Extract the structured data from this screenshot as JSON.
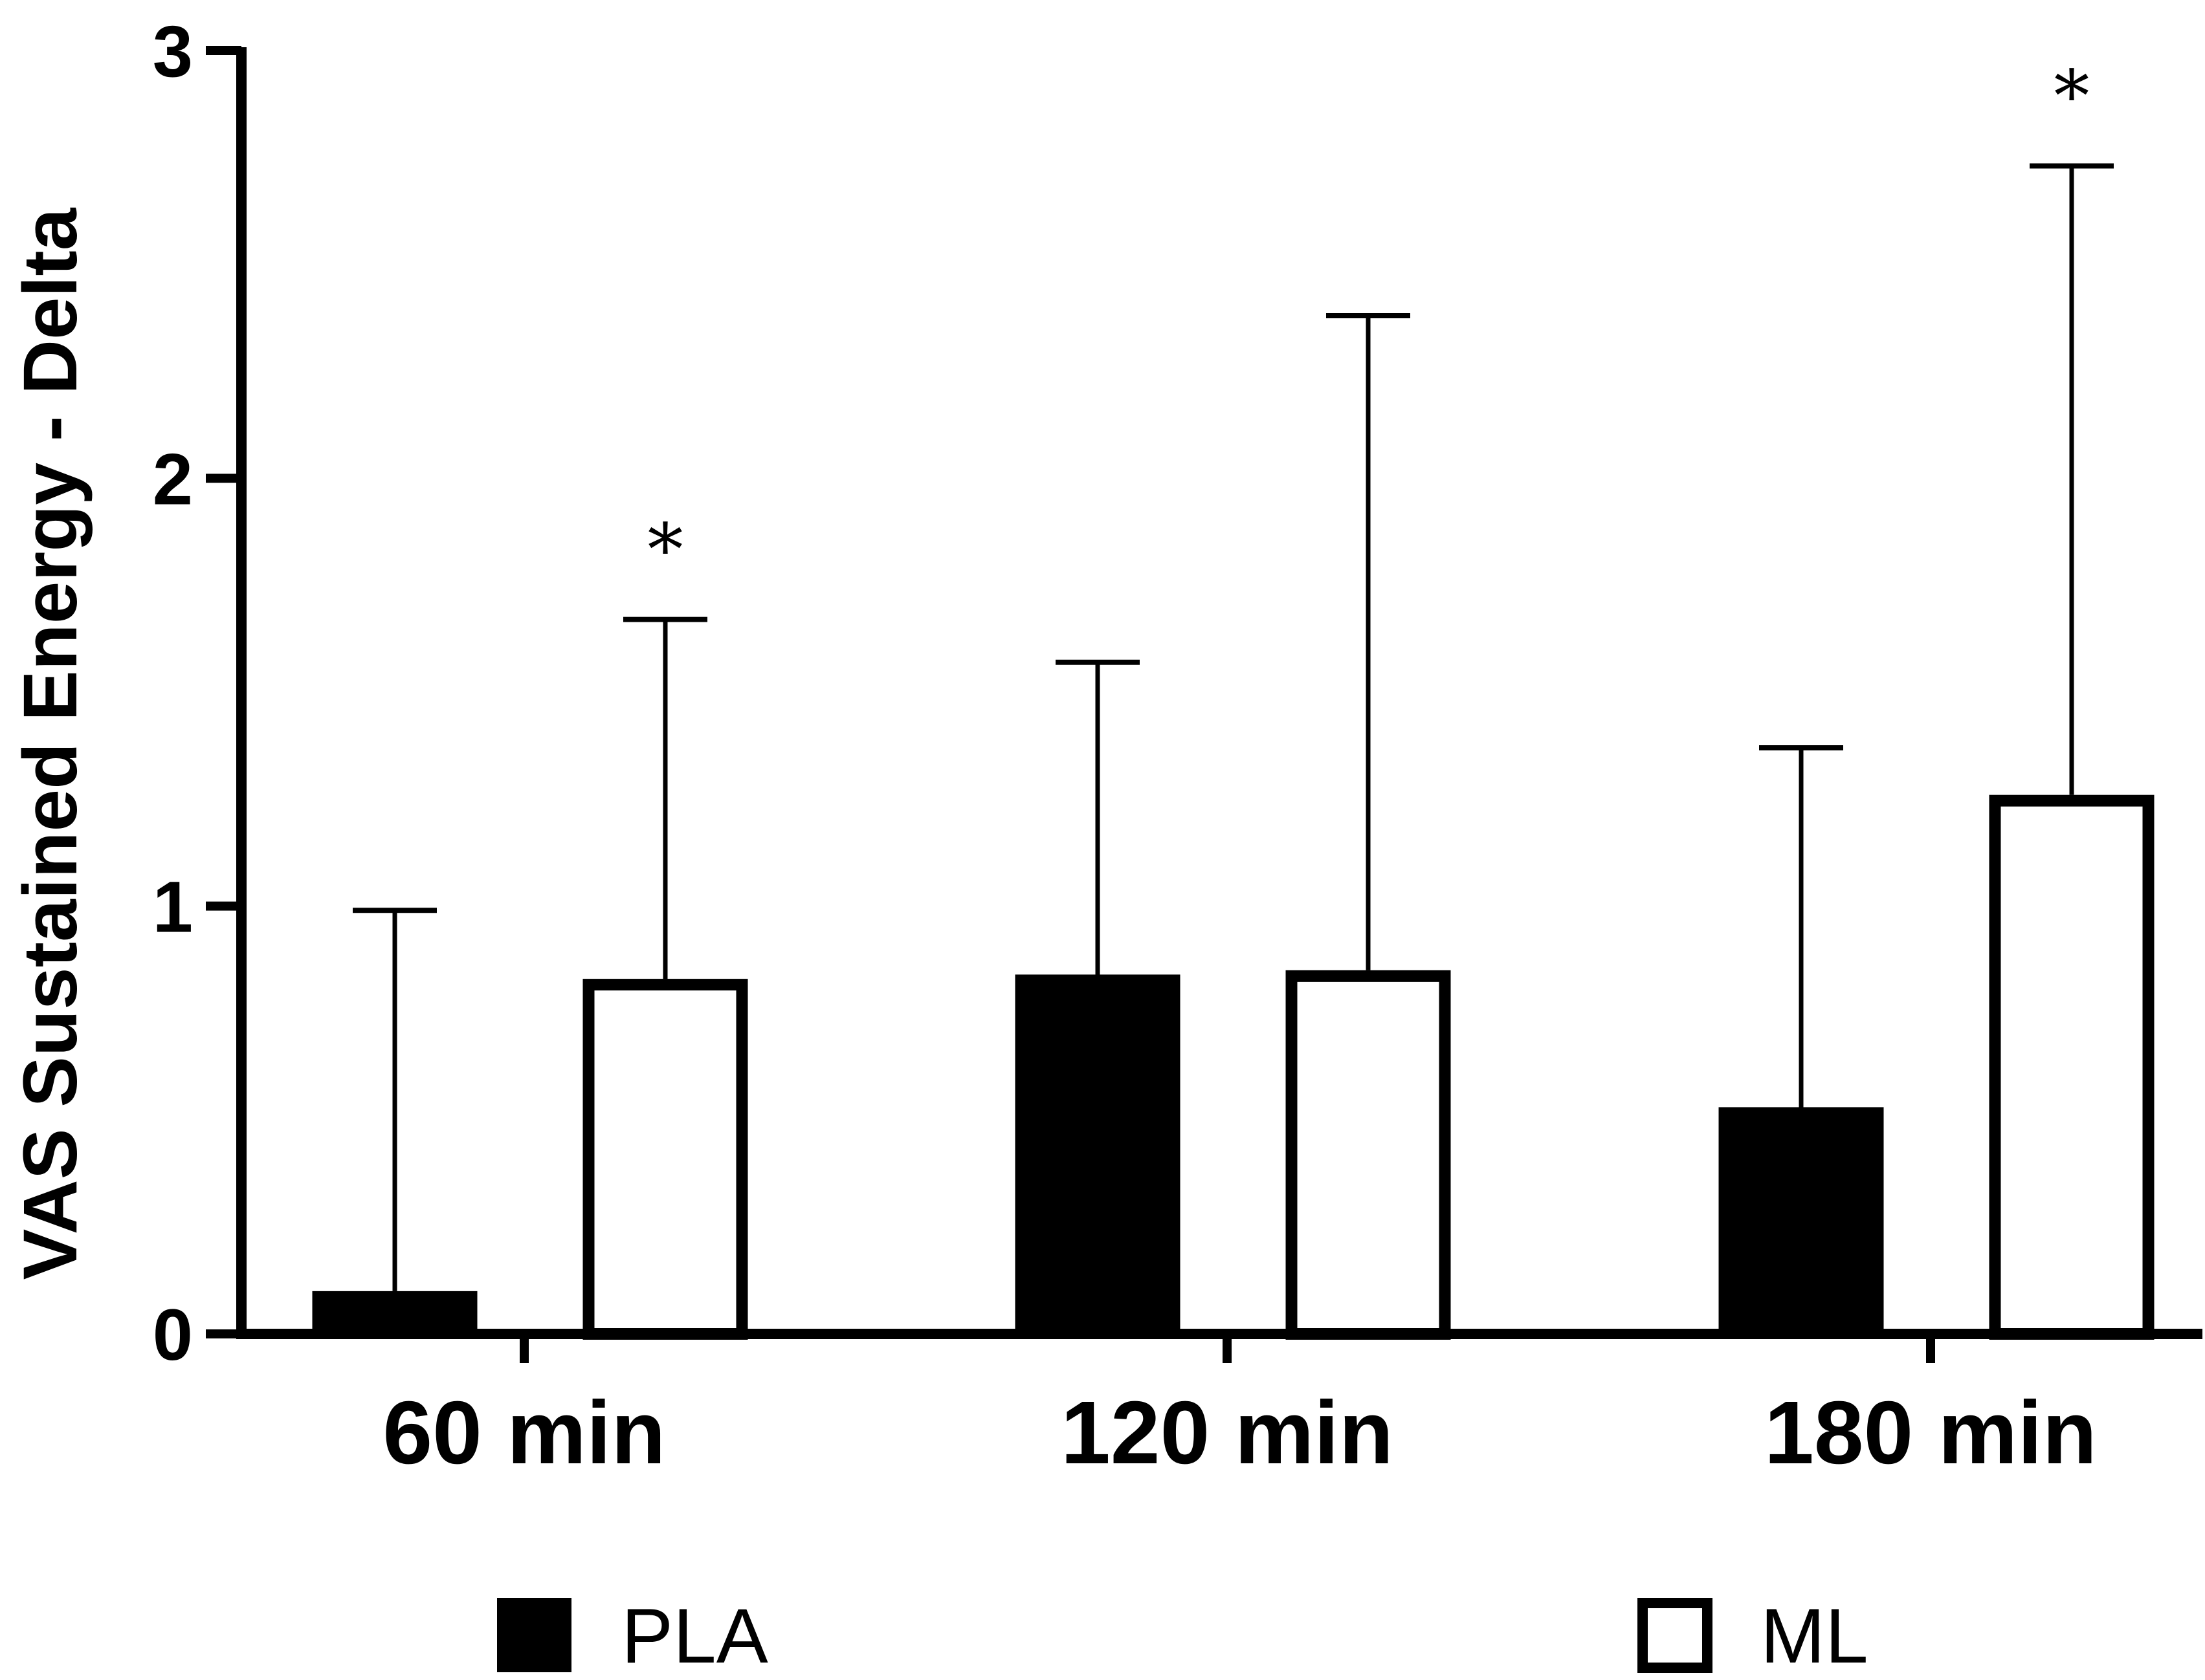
{
  "chart_data": {
    "type": "bar",
    "title": "",
    "xlabel": "",
    "ylabel": "VAS  Sustained Energy - Delta",
    "ylim": [
      0,
      3
    ],
    "yticks": [
      0,
      1,
      2,
      3
    ],
    "grid": false,
    "legend_position": "bottom",
    "categories": [
      "60 min",
      "120 min",
      "180 min"
    ],
    "series": [
      {
        "name": "PLA",
        "fill": "#000000",
        "values": [
          0.1,
          0.84,
          0.53
        ],
        "error_upper": [
          0.99,
          1.57,
          1.37
        ],
        "significance": [
          "",
          "",
          ""
        ]
      },
      {
        "name": "ML",
        "fill": "#ffffff",
        "values": [
          0.83,
          0.85,
          1.26
        ],
        "error_upper": [
          1.67,
          2.38,
          2.73
        ],
        "significance": [
          "*",
          "",
          "*"
        ]
      }
    ]
  }
}
